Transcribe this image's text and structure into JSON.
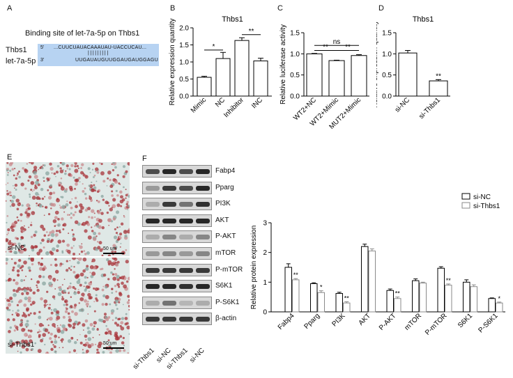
{
  "panels": {
    "A": {
      "label": "A",
      "title": "Binding site of let-7a-5p on Thbs1",
      "row1_name": "Thbs1",
      "row2_name": "let-7a-5p",
      "seq1_prefix": "5'",
      "seq1": "...CUUCUAUACAAAUAU-UACCUCAU...",
      "pairs": "|||||||||",
      "seq2_prefix": "3'",
      "seq2": "UUGAUAUGUUGGAUGAUGGAGU",
      "box_color": "#b7d3f2"
    },
    "B": {
      "label": "B"
    },
    "C": {
      "label": "C"
    },
    "D": {
      "label": "D"
    },
    "E": {
      "label": "E"
    },
    "F": {
      "label": "F"
    }
  },
  "micro": {
    "top_label": "si-NC",
    "bottom_label": "si-Thbs1",
    "scale_top": "50 um",
    "scale_bottom": "50 um"
  },
  "blot": {
    "proteins": [
      "Fabp4",
      "Pparg",
      "PI3K",
      "AKT",
      "P-AKT",
      "mTOR",
      "P-mTOR",
      "S6K1",
      "P-S6K1",
      "β-actin"
    ],
    "lanes": [
      "si-Thbs1",
      "si-NC",
      "si-Thbs1",
      "si-NC"
    ],
    "band_intensity": [
      [
        0.7,
        0.9,
        0.7,
        0.9
      ],
      [
        0.3,
        0.8,
        0.7,
        0.9
      ],
      [
        0.2,
        0.8,
        0.5,
        0.85
      ],
      [
        0.9,
        0.9,
        0.9,
        0.9
      ],
      [
        0.2,
        0.4,
        0.2,
        0.4
      ],
      [
        0.3,
        0.4,
        0.3,
        0.4
      ],
      [
        0.8,
        0.8,
        0.8,
        0.8
      ],
      [
        0.9,
        0.9,
        0.85,
        0.9
      ],
      [
        0.2,
        0.5,
        0.15,
        0.2
      ],
      [
        0.8,
        0.8,
        0.8,
        0.8
      ]
    ]
  },
  "chart_data": [
    {
      "type": "bar",
      "title": "Thbs1",
      "ylabel": "Relative expression quantity",
      "categories": [
        "Mimic",
        "NC",
        "Inhibitor",
        "INC"
      ],
      "values": [
        0.55,
        1.1,
        1.63,
        1.03
      ],
      "errors": [
        0.03,
        0.18,
        0.08,
        0.08
      ],
      "fills": [
        "#ffffff",
        "#ffffff",
        "#ffffff",
        "#ffffff"
      ],
      "ylim": [
        0,
        2.0
      ],
      "yticks": [
        "0.0",
        "0.5",
        "1.0",
        "1.5",
        "2.0"
      ],
      "sig": [
        {
          "from": 0,
          "to": 1,
          "level": 1.35,
          "label": "*"
        },
        {
          "from": 2,
          "to": 3,
          "level": 1.8,
          "label": "**"
        }
      ]
    },
    {
      "type": "bar",
      "title": "",
      "ylabel": "Relative luciferase activity",
      "categories": [
        "WT2+NC",
        "WT2+Mimic",
        "MUT2+Mimic"
      ],
      "values": [
        1.0,
        0.84,
        0.96
      ],
      "errors": [
        0.01,
        0.01,
        0.02
      ],
      "fills": [
        "#ffffff",
        "#ffffff",
        "#ffffff"
      ],
      "ylim": [
        0,
        1.5
      ],
      "yticks": [
        "0.0",
        "0.5",
        "1.0",
        "1.5"
      ],
      "sig": [
        {
          "from": 0,
          "to": 1,
          "level": 1.08,
          "label": "**"
        },
        {
          "from": 1,
          "to": 2,
          "level": 1.08,
          "label": "**"
        },
        {
          "from": 0,
          "to": 2,
          "level": 1.2,
          "label": "ns"
        }
      ]
    },
    {
      "type": "bar",
      "title": "Thbs1",
      "ylabel": "Relative expression quantity",
      "categories": [
        "si-NC",
        "si-Thbs1"
      ],
      "values": [
        1.02,
        0.36
      ],
      "errors": [
        0.06,
        0.03
      ],
      "fills": [
        "#ffffff",
        "#ffffff"
      ],
      "ylim": [
        0,
        1.5
      ],
      "yticks": [
        "0.0",
        "0.5",
        "1.0",
        "1.5"
      ],
      "bar_labels": [
        "",
        "**"
      ]
    },
    {
      "type": "bar",
      "title": "",
      "ylabel": "Relative protein expression",
      "categories": [
        "Fabp4",
        "Pparg",
        "PI3K",
        "AKT",
        "P-AKT",
        "mTOR",
        "P-mTOR",
        "S6K1",
        "P-S6K1"
      ],
      "series": [
        {
          "name": "si-NC",
          "values": [
            1.5,
            0.95,
            0.62,
            2.2,
            0.72,
            1.05,
            1.47,
            1.0,
            0.45
          ],
          "errors": [
            0.12,
            0.03,
            0.04,
            0.08,
            0.05,
            0.06,
            0.05,
            0.08,
            0.02
          ]
        },
        {
          "name": "si-Thbs1",
          "values": [
            1.08,
            0.65,
            0.3,
            2.05,
            0.45,
            0.97,
            0.9,
            0.85,
            0.3
          ],
          "errors": [
            0.04,
            0.06,
            0.04,
            0.07,
            0.05,
            0.03,
            0.04,
            0.06,
            0.03
          ]
        }
      ],
      "bar_labels": [
        "**",
        "*",
        "**",
        "",
        "**",
        "",
        "**",
        "",
        "*"
      ],
      "ylim": [
        0,
        3
      ],
      "yticks": [
        "0",
        "1",
        "2",
        "3"
      ],
      "legend": "top-right"
    }
  ]
}
